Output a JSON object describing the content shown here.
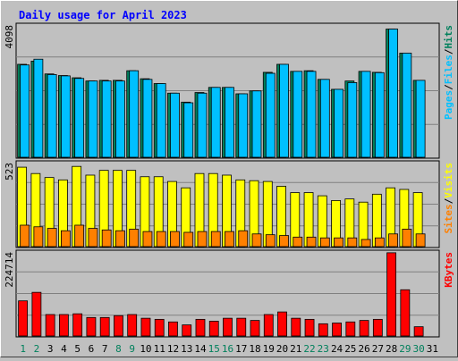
{
  "chart_data": {
    "type": "bar",
    "title": "Daily usage for April 2023",
    "colors": {
      "background": "#c0c0c0",
      "hits": "#00805c",
      "files": "#00c0ff",
      "pages": "#00c0ff",
      "visits": "#ffff00",
      "sites": "#ff8000",
      "kbytes": "#ff0000",
      "title": "#0000ff",
      "weekend_day": "#00805c"
    },
    "days": [
      "1",
      "2",
      "3",
      "4",
      "5",
      "6",
      "7",
      "8",
      "9",
      "10",
      "11",
      "12",
      "13",
      "14",
      "15",
      "16",
      "17",
      "18",
      "19",
      "20",
      "21",
      "22",
      "23",
      "24",
      "25",
      "26",
      "27",
      "28",
      "29",
      "30",
      "31"
    ],
    "weekend_days": [
      "1",
      "2",
      "8",
      "9",
      "15",
      "16",
      "22",
      "23",
      "29",
      "30"
    ],
    "panels": [
      {
        "name": "hits_files",
        "max_label": "4098",
        "ymax": 4098,
        "legend": [
          {
            "text": "Pages",
            "color": "#00c0ff"
          },
          {
            "text": "/",
            "color": "#000000"
          },
          {
            "text": "Files",
            "color": "#00c0ff"
          },
          {
            "text": "/",
            "color": "#000000"
          },
          {
            "text": "Hits",
            "color": "#00805c"
          }
        ],
        "series": [
          {
            "name": "Hits",
            "color": "#00805c",
            "values": [
              2900,
              3000,
              2600,
              2550,
              2480,
              2380,
              2400,
              2400,
              2700,
              2450,
              2300,
              2000,
              1720,
              2020,
              2180,
              2180,
              1980,
              2070,
              2650,
              2900,
              2680,
              2700,
              2430,
              2120,
              2380,
              2680,
              2650,
              4000,
              3250,
              2400,
              null
            ]
          },
          {
            "name": "Files",
            "color": "#00c0ff",
            "values": [
              2880,
              3060,
              2580,
              2540,
              2460,
              2380,
              2380,
              2380,
              2700,
              2430,
              2300,
              2000,
              1700,
              2000,
              2180,
              2180,
              1980,
              2070,
              2620,
              2900,
              2680,
              2680,
              2430,
              2120,
              2330,
              2680,
              2640,
              4000,
              3250,
              2400,
              null
            ]
          }
        ]
      },
      {
        "name": "visits_sites",
        "max_label": "523",
        "ymax": 523,
        "legend": [
          {
            "text": "Sites",
            "color": "#ff8000"
          },
          {
            "text": "/",
            "color": "#000000"
          },
          {
            "text": "Visits",
            "color": "#ffff00"
          }
        ],
        "series": [
          {
            "name": "Visits",
            "color": "#ffff00",
            "values": [
              500,
              460,
              435,
              420,
              505,
              450,
              480,
              480,
              480,
              440,
              440,
              410,
              370,
              460,
              460,
              450,
              420,
              415,
              410,
              380,
              340,
              340,
              320,
              290,
              300,
              280,
              330,
              370,
              360,
              340,
              null
            ]
          },
          {
            "name": "Sites",
            "color": "#ff8000",
            "values": [
              135,
              125,
              115,
              100,
              135,
              115,
              105,
              100,
              110,
              95,
              95,
              95,
              90,
              95,
              95,
              95,
              100,
              80,
              75,
              70,
              60,
              60,
              55,
              55,
              55,
              45,
              55,
              80,
              110,
              80,
              null
            ]
          }
        ]
      },
      {
        "name": "kbytes",
        "max_label": "224714",
        "ymax": 224714,
        "legend": [
          {
            "text": "KBytes",
            "color": "#ff0000"
          }
        ],
        "series": [
          {
            "name": "KBytes",
            "color": "#ff0000",
            "values": [
              95000,
              118000,
              58000,
              58000,
              60000,
              50000,
              50000,
              55000,
              58000,
              48000,
              45000,
              38000,
              30000,
              45000,
              40000,
              48000,
              48000,
              42000,
              58000,
              65000,
              48000,
              45000,
              33000,
              35000,
              38000,
              42000,
              45000,
              225000,
              125000,
              25000,
              null
            ]
          }
        ]
      }
    ]
  }
}
